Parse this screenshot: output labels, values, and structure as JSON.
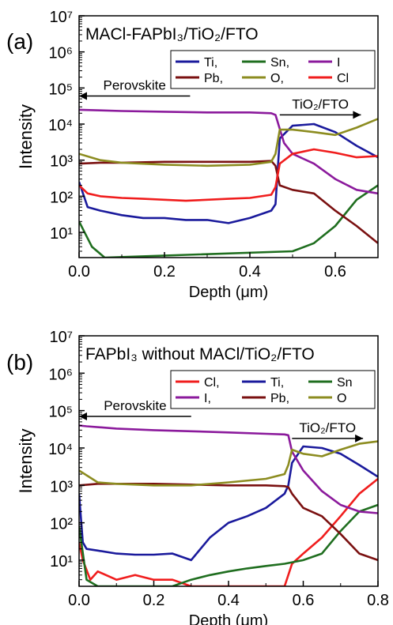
{
  "chart_data": [
    {
      "panel_label": "(a)",
      "type": "line",
      "title": "MACl-FAPbI₃/TiO₂/FTO",
      "xlabel": "Depth (μm)",
      "ylabel": "Intensity",
      "xlim": [
        0,
        0.7
      ],
      "ylim": [
        2,
        10000000
      ],
      "yscale": "log",
      "x_ticks": [
        "0.0",
        "0.2",
        "0.4",
        "0.6"
      ],
      "y_ticks": [
        "10¹",
        "10²",
        "10³",
        "10⁴",
        "10⁵",
        "10⁶",
        "10⁷"
      ],
      "legend_position": "top-right",
      "legend_columns": 3,
      "annotations": [
        {
          "text": "Perovskite",
          "arrow": "left",
          "x_from": 0.26,
          "x_to": 0.0,
          "y": 60000
        },
        {
          "text": "TiO₂/FTO",
          "arrow": "right",
          "x_from": 0.47,
          "x_to": 0.66,
          "y": 18000
        }
      ],
      "series": [
        {
          "name": "Ti,",
          "color": "#1a1a9c",
          "x": [
            0.0,
            0.02,
            0.05,
            0.1,
            0.15,
            0.2,
            0.25,
            0.3,
            0.35,
            0.4,
            0.45,
            0.46,
            0.47,
            0.5,
            0.55,
            0.6,
            0.65,
            0.7
          ],
          "y": [
            250,
            50,
            40,
            30,
            25,
            25,
            22,
            22,
            18,
            25,
            40,
            60,
            4000,
            9000,
            10000,
            6000,
            2500,
            1200
          ]
        },
        {
          "name": "Sn,",
          "color": "#1f6e1f",
          "x": [
            0.0,
            0.03,
            0.06,
            0.5,
            0.55,
            0.6,
            0.65,
            0.7
          ],
          "y": [
            20,
            4,
            2,
            3,
            5,
            15,
            80,
            200
          ]
        },
        {
          "name": "I",
          "color": "#8b1a9c",
          "x": [
            0.0,
            0.05,
            0.1,
            0.2,
            0.3,
            0.4,
            0.45,
            0.46,
            0.48,
            0.5,
            0.55,
            0.6,
            0.65,
            0.7
          ],
          "y": [
            25000,
            24000,
            23000,
            22000,
            21000,
            21000,
            20000,
            18000,
            3000,
            1500,
            800,
            300,
            150,
            120
          ]
        },
        {
          "name": "Pb,",
          "color": "#7a1010",
          "x": [
            0.0,
            0.05,
            0.1,
            0.2,
            0.3,
            0.4,
            0.45,
            0.46,
            0.47,
            0.5,
            0.55,
            0.6,
            0.65,
            0.7
          ],
          "y": [
            800,
            850,
            850,
            900,
            900,
            900,
            950,
            700,
            200,
            150,
            120,
            40,
            15,
            5
          ]
        },
        {
          "name": "O,",
          "color": "#8c8c20",
          "x": [
            0.0,
            0.05,
            0.1,
            0.2,
            0.3,
            0.4,
            0.45,
            0.46,
            0.47,
            0.5,
            0.55,
            0.6,
            0.65,
            0.7
          ],
          "y": [
            1500,
            1000,
            850,
            750,
            700,
            750,
            900,
            1500,
            7000,
            7000,
            6000,
            5000,
            8000,
            14000
          ]
        },
        {
          "name": "Cl",
          "color": "#f01d1d",
          "x": [
            0.0,
            0.02,
            0.05,
            0.1,
            0.15,
            0.2,
            0.25,
            0.3,
            0.35,
            0.4,
            0.45,
            0.46,
            0.47,
            0.5,
            0.55,
            0.6,
            0.65,
            0.7
          ],
          "y": [
            200,
            120,
            100,
            90,
            85,
            80,
            75,
            80,
            85,
            90,
            110,
            180,
            800,
            1500,
            2000,
            1600,
            1200,
            1300
          ]
        }
      ]
    },
    {
      "panel_label": "(b)",
      "type": "line",
      "title": "FAPbI₃ without MACl/TiO₂/FTO",
      "xlabel": "Depth (μm)",
      "ylabel": "Intensity",
      "xlim": [
        0,
        0.8
      ],
      "ylim": [
        2,
        10000000
      ],
      "yscale": "log",
      "x_ticks": [
        "0.0",
        "0.2",
        "0.4",
        "0.6",
        "0.8"
      ],
      "y_ticks": [
        "10¹",
        "10²",
        "10³",
        "10⁴",
        "10⁵",
        "10⁶",
        "10⁷"
      ],
      "legend_position": "top-right",
      "legend_columns": 3,
      "annotations": [
        {
          "text": "Perovskite",
          "arrow": "left",
          "x_from": 0.3,
          "x_to": 0.0,
          "y": 70000
        },
        {
          "text": "TiO₂/FTO",
          "arrow": "right",
          "x_from": 0.57,
          "x_to": 0.76,
          "y": 18000
        }
      ],
      "series": [
        {
          "name": "Cl,",
          "color": "#f01d1d",
          "x": [
            0.0,
            0.01,
            0.03,
            0.05,
            0.1,
            0.15,
            0.2,
            0.25,
            0.3,
            0.55,
            0.57,
            0.6,
            0.65,
            0.7,
            0.75,
            0.8
          ],
          "y": [
            30,
            10,
            3,
            5,
            3,
            4,
            3,
            3,
            2,
            2,
            8,
            15,
            40,
            150,
            600,
            1500
          ]
        },
        {
          "name": "Ti,",
          "color": "#1a1a9c",
          "x": [
            0.0,
            0.01,
            0.02,
            0.05,
            0.1,
            0.15,
            0.2,
            0.25,
            0.3,
            0.35,
            0.4,
            0.45,
            0.5,
            0.55,
            0.56,
            0.57,
            0.6,
            0.65,
            0.7,
            0.75,
            0.8
          ],
          "y": [
            600,
            30,
            20,
            18,
            15,
            14,
            14,
            15,
            10,
            40,
            100,
            150,
            250,
            600,
            1000,
            4000,
            11000,
            10000,
            7000,
            3500,
            1700
          ]
        },
        {
          "name": "Sn",
          "color": "#1f6e1f",
          "x": [
            0.0,
            0.02,
            0.05,
            0.25,
            0.3,
            0.35,
            0.4,
            0.45,
            0.5,
            0.55,
            0.6,
            0.65,
            0.7,
            0.75,
            0.8
          ],
          "y": [
            80,
            3,
            2,
            2,
            3,
            4,
            5,
            6,
            7,
            8,
            10,
            15,
            60,
            200,
            300
          ]
        },
        {
          "name": "I,",
          "color": "#8b1a9c",
          "x": [
            0.0,
            0.02,
            0.1,
            0.2,
            0.3,
            0.4,
            0.5,
            0.55,
            0.56,
            0.57,
            0.6,
            0.65,
            0.7,
            0.75,
            0.8
          ],
          "y": [
            40000,
            38000,
            33000,
            30000,
            28000,
            26000,
            24000,
            23000,
            22000,
            8000,
            2500,
            700,
            300,
            200,
            180
          ]
        },
        {
          "name": "Pb,",
          "color": "#7a1010",
          "x": [
            0.0,
            0.05,
            0.1,
            0.2,
            0.3,
            0.4,
            0.5,
            0.55,
            0.56,
            0.57,
            0.6,
            0.65,
            0.7,
            0.75,
            0.8
          ],
          "y": [
            1000,
            1100,
            1100,
            1100,
            1050,
            1000,
            1000,
            950,
            900,
            600,
            250,
            150,
            50,
            15,
            10
          ]
        },
        {
          "name": "O",
          "color": "#8c8c20",
          "x": [
            0.0,
            0.05,
            0.1,
            0.2,
            0.3,
            0.4,
            0.5,
            0.55,
            0.56,
            0.57,
            0.6,
            0.65,
            0.7,
            0.75,
            0.8
          ],
          "y": [
            2500,
            1200,
            1100,
            1000,
            1000,
            1200,
            1500,
            2000,
            3500,
            9000,
            7000,
            6000,
            9000,
            13000,
            15000
          ]
        }
      ]
    }
  ]
}
